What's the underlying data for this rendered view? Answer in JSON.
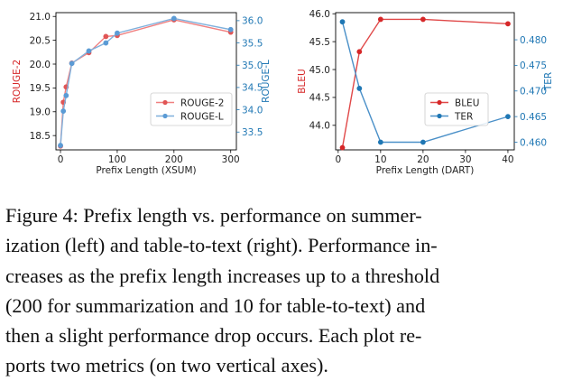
{
  "chart_data": [
    {
      "type": "line",
      "x": [
        0,
        5,
        10,
        20,
        50,
        80,
        100,
        200,
        300
      ],
      "xlabel": "Prefix Length (XSUM)",
      "xticks": [
        "0",
        "100",
        "200",
        "300"
      ],
      "xlim": [
        -8,
        310
      ],
      "left_axis": {
        "label": "ROUGE-2",
        "color": "#d62728",
        "ticks": [
          "18.5",
          "19.0",
          "19.5",
          "20.0",
          "20.5",
          "21.0"
        ],
        "ylim": [
          18.2,
          21.08
        ]
      },
      "right_axis": {
        "label": "ROUGE-L",
        "color": "#1f77b4",
        "ticks": [
          "33.5",
          "34.0",
          "34.5",
          "35.0",
          "35.5",
          "36.0"
        ],
        "ylim": [
          33.1,
          36.18
        ]
      },
      "series": [
        {
          "name": "ROUGE-2",
          "axis": "left",
          "color": "#f08080",
          "marker_color": "#e05555",
          "values": [
            18.28,
            19.2,
            19.52,
            20.02,
            20.24,
            20.58,
            20.6,
            20.93,
            20.67
          ]
        },
        {
          "name": "ROUGE-L",
          "axis": "right",
          "color": "#7fb0dc",
          "marker_color": "#5b9bd5",
          "values": [
            33.2,
            33.97,
            34.32,
            35.04,
            35.32,
            35.5,
            35.72,
            36.05,
            35.8
          ]
        }
      ],
      "legend": "lower-right"
    },
    {
      "type": "line",
      "x": [
        1,
        5,
        10,
        20,
        40
      ],
      "xlabel": "Prefix Length (DART)",
      "xticks": [
        "0",
        "10",
        "20",
        "30",
        "40"
      ],
      "xlim": [
        -0.6,
        41.5
      ],
      "left_axis": {
        "label": "BLEU",
        "color": "#d62728",
        "ticks": [
          "44.0",
          "44.5",
          "45.0",
          "45.5",
          "46.0"
        ],
        "ylim": [
          43.56,
          46.02
        ]
      },
      "right_axis": {
        "label": "TER",
        "color": "#1f77b4",
        "ticks": [
          "0.460",
          "0.465",
          "0.470",
          "0.475",
          "0.480"
        ],
        "ylim": [
          0.4585,
          0.4853
        ]
      },
      "series": [
        {
          "name": "BLEU",
          "axis": "left",
          "color": "#e04848",
          "marker_color": "#d62728",
          "values": [
            43.6,
            45.32,
            45.9,
            45.9,
            45.82
          ]
        },
        {
          "name": "TER",
          "axis": "right",
          "color": "#4a90c8",
          "marker_color": "#1f77b4",
          "values": [
            0.4835,
            0.4705,
            0.46,
            0.46,
            0.465
          ]
        }
      ],
      "legend": "lower-right"
    }
  ],
  "caption": {
    "lines": [
      "Figure 4:  Prefix length vs. performance on summer-",
      "ization (left) and table-to-text (right). Performance in-",
      "creases as the prefix length increases up to a threshold",
      "(200 for summarization and 10 for table-to-text) and",
      "then a slight performance drop occurs.  Each plot re-",
      "ports two metrics (on two vertical axes)."
    ]
  }
}
